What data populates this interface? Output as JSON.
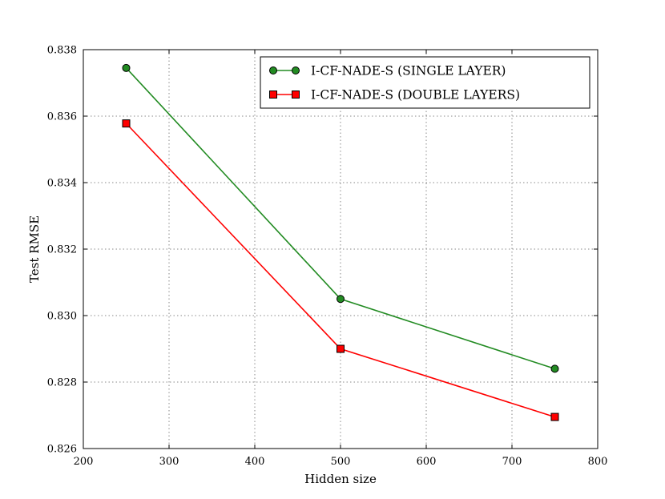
{
  "chart_data": {
    "type": "line",
    "title": "",
    "xlabel": "Hidden size",
    "ylabel": "Test RMSE",
    "xlim": [
      200,
      800
    ],
    "ylim": [
      0.826,
      0.838
    ],
    "xticks": [
      200,
      300,
      400,
      500,
      600,
      700,
      800
    ],
    "yticks": [
      0.826,
      0.828,
      0.83,
      0.832,
      0.834,
      0.836,
      0.838
    ],
    "xtick_labels": [
      "200",
      "300",
      "400",
      "500",
      "600",
      "700",
      "800"
    ],
    "ytick_labels": [
      "0.826",
      "0.828",
      "0.830",
      "0.832",
      "0.834",
      "0.836",
      "0.838"
    ],
    "grid": true,
    "legend_position": "top-right",
    "series": [
      {
        "name": "I-CF-NADE-S (SINGLE LAYER)",
        "color": "#228b22",
        "marker": "circle",
        "x": [
          250,
          500,
          750
        ],
        "y": [
          0.83745,
          0.8305,
          0.8284
        ]
      },
      {
        "name": "I-CF-NADE-S (DOUBLE LAYERS)",
        "color": "#ff0000",
        "marker": "square",
        "x": [
          250,
          500,
          750
        ],
        "y": [
          0.83578,
          0.829,
          0.82695
        ]
      }
    ]
  }
}
